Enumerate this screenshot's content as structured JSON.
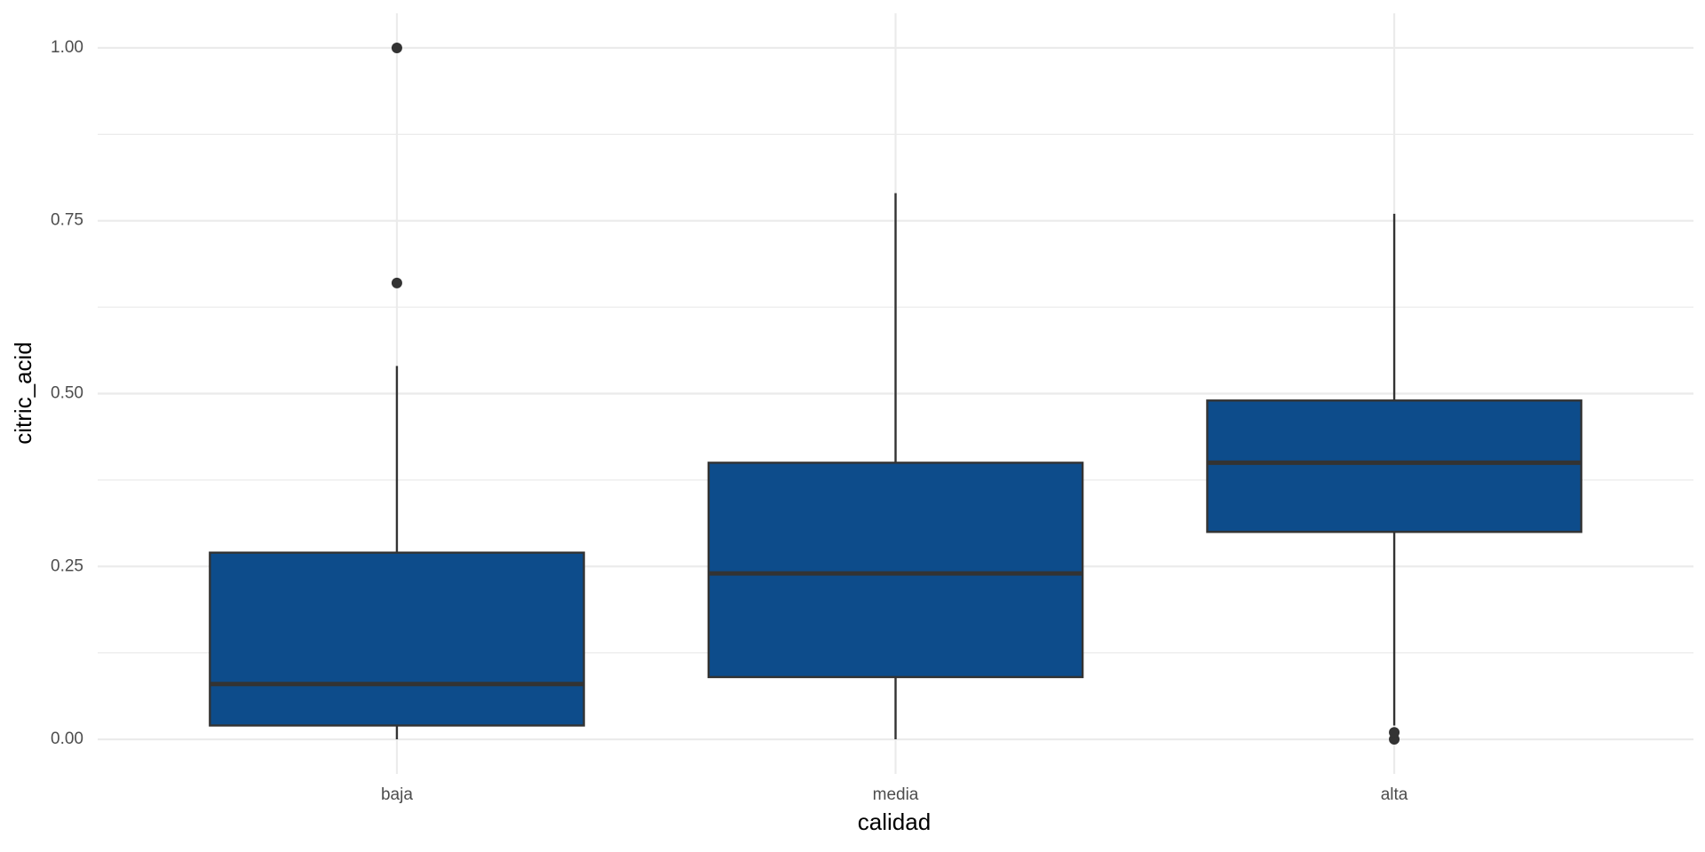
{
  "chart_data": {
    "type": "box",
    "x_label": "calidad",
    "y_label": "citric_acid",
    "categories": [
      "baja",
      "media",
      "alta"
    ],
    "whisker_low": [
      0.0,
      0.0,
      0.02
    ],
    "q1": [
      0.02,
      0.09,
      0.3
    ],
    "median": [
      0.08,
      0.24,
      0.4
    ],
    "q3": [
      0.27,
      0.4,
      0.49
    ],
    "whisker_high": [
      0.54,
      0.79,
      0.76
    ],
    "outliers": [
      [
        0.66,
        1.0
      ],
      [],
      [
        0.0,
        0.01
      ]
    ],
    "color": "#0d4c8b",
    "ylim": [
      -0.05,
      1.05
    ],
    "yticks": [
      {
        "value": 0,
        "label": "0.00"
      },
      {
        "value": 0.25,
        "label": "0.25"
      },
      {
        "value": 0.5,
        "label": "0.50"
      },
      {
        "value": 0.75,
        "label": "0.75"
      },
      {
        "value": 1,
        "label": "1.00"
      }
    ],
    "minor_yticks": [
      0.125,
      0.375,
      0.625,
      0.875
    ],
    "grid": true
  }
}
